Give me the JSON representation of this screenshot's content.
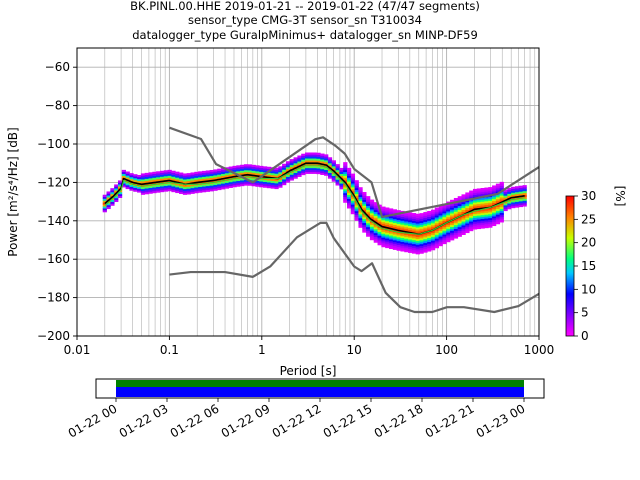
{
  "title_lines": [
    "BK.PINL.00.HHE   2019-01-21 -- 2019-01-22  (47/47 segments)",
    "sensor_type CMG-3T sensor_sn T310034",
    "datalogger_type GuralpMinimus+ datalogger_sn MINP-DF59"
  ],
  "chart_data": {
    "type": "heatmap",
    "xlabel": "Period [s]",
    "ylabel": "Power [m²/s⁴/Hz] [dB]",
    "xscale": "log",
    "xlim": [
      0.01,
      1000
    ],
    "ylim": [
      -200,
      -50
    ],
    "xticks": [
      0.01,
      0.1,
      1,
      10,
      100,
      1000
    ],
    "xtick_labels": [
      "0.01",
      "0.1",
      "1",
      "10",
      "100",
      "1000"
    ],
    "yticks": [
      -200,
      -180,
      -160,
      -140,
      -120,
      -100,
      -80,
      -60
    ],
    "ytick_labels": [
      "−200",
      "−180",
      "−160",
      "−140",
      "−120",
      "−100",
      "−80",
      "−60"
    ],
    "grid": true,
    "colorbar": {
      "label": "[%]",
      "ticks": [
        0,
        5,
        10,
        15,
        20,
        25,
        30
      ],
      "tick_labels": [
        "0",
        "5",
        "10",
        "15",
        "20",
        "25",
        "30"
      ],
      "range": [
        0,
        30
      ]
    },
    "series": [
      {
        "role": "mode",
        "color": "#000000",
        "points": [
          [
            0.02,
            -131
          ],
          [
            0.025,
            -127
          ],
          [
            0.03,
            -123
          ],
          [
            0.032,
            -118
          ],
          [
            0.04,
            -120
          ],
          [
            0.05,
            -121
          ],
          [
            0.07,
            -120
          ],
          [
            0.1,
            -119
          ],
          [
            0.15,
            -121
          ],
          [
            0.2,
            -120
          ],
          [
            0.3,
            -119
          ],
          [
            0.5,
            -117
          ],
          [
            0.7,
            -116
          ],
          [
            1,
            -117
          ],
          [
            1.5,
            -118
          ],
          [
            2,
            -114
          ],
          [
            3,
            -110
          ],
          [
            4,
            -110
          ],
          [
            5,
            -111
          ],
          [
            6,
            -114
          ],
          [
            8,
            -120
          ],
          [
            10,
            -127
          ],
          [
            12,
            -134
          ],
          [
            15,
            -139
          ],
          [
            20,
            -143
          ],
          [
            30,
            -145
          ],
          [
            50,
            -147
          ],
          [
            70,
            -145
          ],
          [
            100,
            -141
          ],
          [
            150,
            -137
          ],
          [
            200,
            -134
          ],
          [
            300,
            -133
          ],
          [
            500,
            -128
          ],
          [
            700,
            -127
          ]
        ]
      },
      {
        "role": "mean",
        "color": "#32cd32",
        "points": [
          [
            0.02,
            -132
          ],
          [
            0.025,
            -128
          ],
          [
            0.03,
            -124
          ],
          [
            0.032,
            -119
          ],
          [
            0.04,
            -121
          ],
          [
            0.05,
            -122
          ],
          [
            0.07,
            -121
          ],
          [
            0.1,
            -120
          ],
          [
            0.15,
            -121
          ],
          [
            0.2,
            -121
          ],
          [
            0.3,
            -120
          ],
          [
            0.5,
            -118
          ],
          [
            0.7,
            -117
          ],
          [
            1,
            -118
          ],
          [
            1.5,
            -118
          ],
          [
            2,
            -115
          ],
          [
            3,
            -111
          ],
          [
            4,
            -111
          ],
          [
            5,
            -112
          ],
          [
            6,
            -115
          ],
          [
            8,
            -121
          ],
          [
            10,
            -128
          ],
          [
            12,
            -135
          ],
          [
            15,
            -140
          ],
          [
            20,
            -144
          ],
          [
            30,
            -146
          ],
          [
            50,
            -147
          ],
          [
            70,
            -145
          ],
          [
            100,
            -141
          ],
          [
            150,
            -137
          ],
          [
            200,
            -135
          ],
          [
            300,
            -133
          ],
          [
            500,
            -129
          ],
          [
            700,
            -128
          ]
        ]
      },
      {
        "role": "nhnm",
        "color": "#666666",
        "points": [
          [
            0.1,
            -91.5
          ],
          [
            0.22,
            -97.4
          ],
          [
            0.32,
            -110.5
          ],
          [
            0.8,
            -120
          ],
          [
            3.8,
            -97.5
          ],
          [
            4.6,
            -96.5
          ],
          [
            6.3,
            -101
          ],
          [
            7.9,
            -105
          ],
          [
            10,
            -113
          ],
          [
            15.4,
            -120
          ],
          [
            20,
            -138
          ],
          [
            354.8,
            -126
          ],
          [
            1000,
            -112
          ]
        ]
      },
      {
        "role": "nlnm",
        "color": "#666666",
        "points": [
          [
            0.1,
            -168
          ],
          [
            0.17,
            -166.7
          ],
          [
            0.4,
            -166.7
          ],
          [
            0.8,
            -169.2
          ],
          [
            1.24,
            -163.7
          ],
          [
            2.4,
            -148.6
          ],
          [
            4.3,
            -141.1
          ],
          [
            5,
            -141.1
          ],
          [
            6,
            -149
          ],
          [
            10,
            -163.8
          ],
          [
            12,
            -166.2
          ],
          [
            15.6,
            -162.1
          ],
          [
            21.9,
            -177.5
          ],
          [
            31.6,
            -185
          ],
          [
            45,
            -187.5
          ],
          [
            70,
            -187.5
          ],
          [
            101,
            -185
          ],
          [
            154,
            -185
          ],
          [
            328,
            -187.5
          ],
          [
            600,
            -184.4
          ],
          [
            1000,
            -178
          ]
        ]
      }
    ]
  },
  "timeline": {
    "tick_labels": [
      "01-22 00",
      "01-22 03",
      "01-22 06",
      "01-22 09",
      "01-22 12",
      "01-22 15",
      "01-22 18",
      "01-22 21",
      "01-23 00"
    ],
    "data_color": "#008000",
    "psd_color": "#0000ff"
  }
}
